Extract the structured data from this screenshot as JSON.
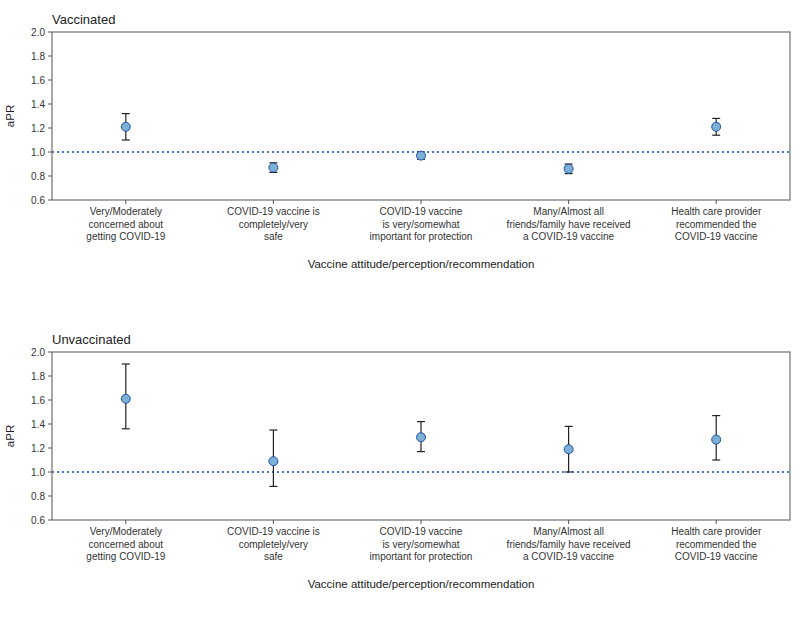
{
  "chart_data": [
    {
      "type": "dot",
      "title": "Vaccinated",
      "categories": [
        "Very/Moderately\nconcerned about\ngetting COVID-19",
        "COVID-19 vaccine is\ncompletely/very\nsafe",
        "COVID-19 vaccine\nis very/somewhat\nimportant for protection",
        "Many/Almost all\nfriends/family have received\na COVID-19 vaccine",
        "Health care provider\nrecommended the\nCOVID-19 vaccine"
      ],
      "values": [
        1.21,
        0.87,
        0.97,
        0.86,
        1.21
      ],
      "ci_lower": [
        1.1,
        0.83,
        0.94,
        0.82,
        1.14
      ],
      "ci_upper": [
        1.32,
        0.91,
        1.0,
        0.9,
        1.28
      ],
      "reference_line": 1.0,
      "xlabel": "Vaccine attitude/perception/recommendation",
      "ylabel": "aPR",
      "ylim": [
        0.6,
        2.0
      ],
      "yticks": [
        0.6,
        0.8,
        {
          "value": 1.0,
          "label": "1.0"
        },
        1.2,
        1.4,
        1.6,
        1.8,
        {
          "value": 2.0,
          "label": "2.0"
        }
      ],
      "color": "#7bafd4",
      "marker": "circle",
      "grid": false
    },
    {
      "type": "dot",
      "title": "Unvaccinated",
      "categories": [
        "Very/Moderately\nconcerned about\ngetting COVID-19",
        "COVID-19 vaccine is\ncompletely/very\nsafe",
        "COVID-19 vaccine\nis very/somewhat\nimportant for protection",
        "Many/Almost all\nfriends/family have received\na COVID-19 vaccine",
        "Health care provider\nrecommended the\nCOVID-19 vaccine"
      ],
      "values": [
        1.61,
        1.09,
        1.29,
        1.19,
        1.27
      ],
      "ci_lower": [
        1.36,
        0.88,
        1.17,
        1.0,
        1.1
      ],
      "ci_upper": [
        1.9,
        1.35,
        1.42,
        1.38,
        1.47
      ],
      "reference_line": 1.0,
      "xlabel": "Vaccine attitude/perception/recommendation",
      "ylabel": "aPR",
      "ylim": [
        0.6,
        2.0
      ],
      "yticks": [
        0.6,
        0.8,
        {
          "value": 1.0,
          "label": "1.0"
        },
        1.2,
        1.4,
        1.6,
        1.8,
        {
          "value": 2.0,
          "label": "2.0"
        }
      ],
      "color": "#7bafd4",
      "marker": "circle",
      "grid": false
    }
  ]
}
